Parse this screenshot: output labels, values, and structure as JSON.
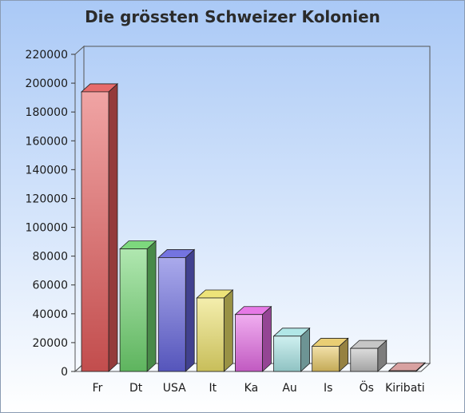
{
  "chart_data": {
    "type": "bar",
    "title": "Die grössten Schweizer Kolonien",
    "xlabel": "",
    "ylabel": "",
    "ylim": [
      0,
      220000
    ],
    "yticks": [
      0,
      20000,
      40000,
      60000,
      80000,
      100000,
      120000,
      140000,
      160000,
      180000,
      200000,
      220000
    ],
    "categories": [
      "Fr",
      "Dt",
      "USA",
      "It",
      "Ka",
      "Au",
      "Is",
      "Ös",
      "Kiribati"
    ],
    "values": [
      194000,
      85000,
      79000,
      51000,
      39500,
      24500,
      17500,
      16000,
      500
    ],
    "colors": [
      "#e45a5a",
      "#6fd46f",
      "#6464dc",
      "#ebe06a",
      "#e36ae3",
      "#a8e4e4",
      "#e7c865",
      "#c0c0c0",
      "#d49696"
    ],
    "grid": false,
    "legend": "none",
    "style": "3d"
  }
}
